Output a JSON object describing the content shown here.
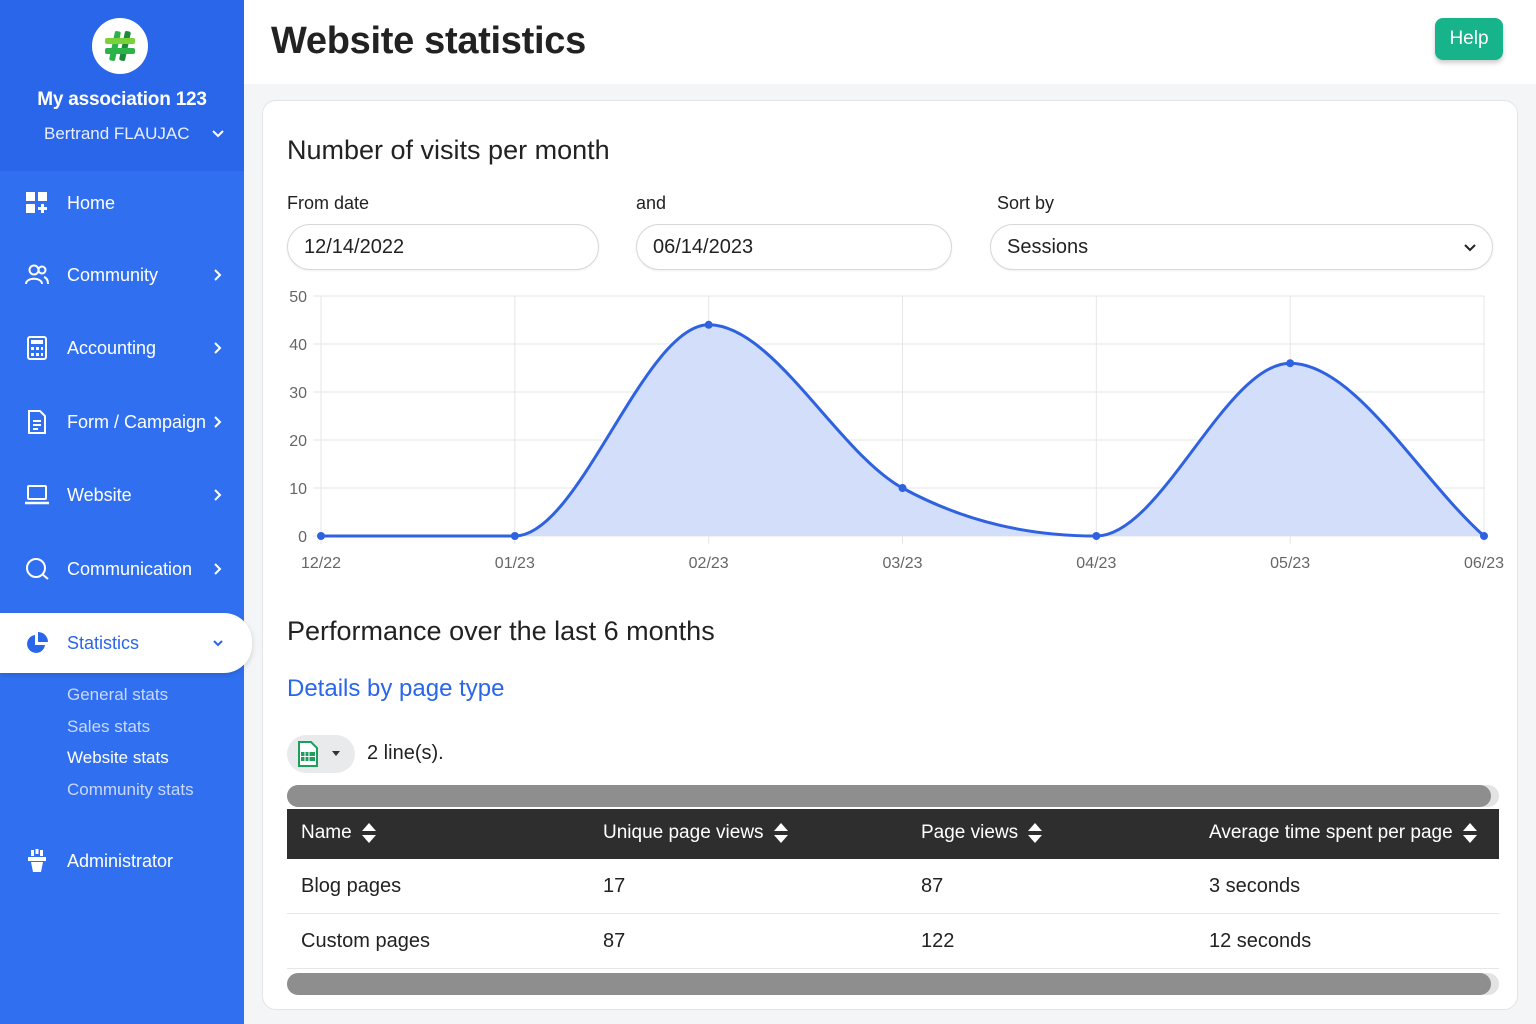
{
  "sidebar": {
    "org_name": "My association 123",
    "user_name": "Bertrand FLAUJAC",
    "items": [
      {
        "label": "Home"
      },
      {
        "label": "Community"
      },
      {
        "label": "Accounting"
      },
      {
        "label": "Form / Campaign"
      },
      {
        "label": "Website"
      },
      {
        "label": "Communication"
      },
      {
        "label": "Statistics"
      },
      {
        "label": "Administrator"
      }
    ],
    "sub_items": [
      {
        "label": "General stats"
      },
      {
        "label": "Sales stats"
      },
      {
        "label": "Website stats"
      },
      {
        "label": "Community stats"
      }
    ],
    "colors": {
      "background": "#3070f0",
      "active_text": "#2a66ea"
    }
  },
  "header": {
    "title": "Website statistics",
    "help_label": "Help",
    "help_color": "#17b38a"
  },
  "visits": {
    "title": "Number of visits per month",
    "from_label": "From date",
    "from_value": "12/14/2022",
    "and_label": "and",
    "to_value": "06/14/2023",
    "sort_label": "Sort by",
    "sort_value": "Sessions"
  },
  "chart_data": {
    "type": "area",
    "x": [
      "12/22",
      "01/23",
      "02/23",
      "03/23",
      "04/23",
      "05/23",
      "06/23"
    ],
    "series": [
      {
        "values": [
          0,
          0,
          44,
          10,
          0,
          36,
          0
        ],
        "color": "#2f62e0",
        "fill": "#d3dffa"
      }
    ],
    "ylim": [
      0,
      50
    ],
    "yticks": [
      "50",
      "40",
      "30",
      "20",
      "10",
      "0"
    ],
    "grid": true,
    "smooth": true
  },
  "performance": {
    "title": "Performance over the last 6 months",
    "details_link": "Details by page type",
    "lines_count": "2 line(s).",
    "columns": [
      "Name",
      "Unique page views",
      "Page views",
      "Average time spent per page"
    ],
    "rows": [
      [
        "Blog pages",
        "17",
        "87",
        "3 seconds"
      ],
      [
        "Custom pages",
        "87",
        "122",
        "12 seconds"
      ]
    ]
  }
}
